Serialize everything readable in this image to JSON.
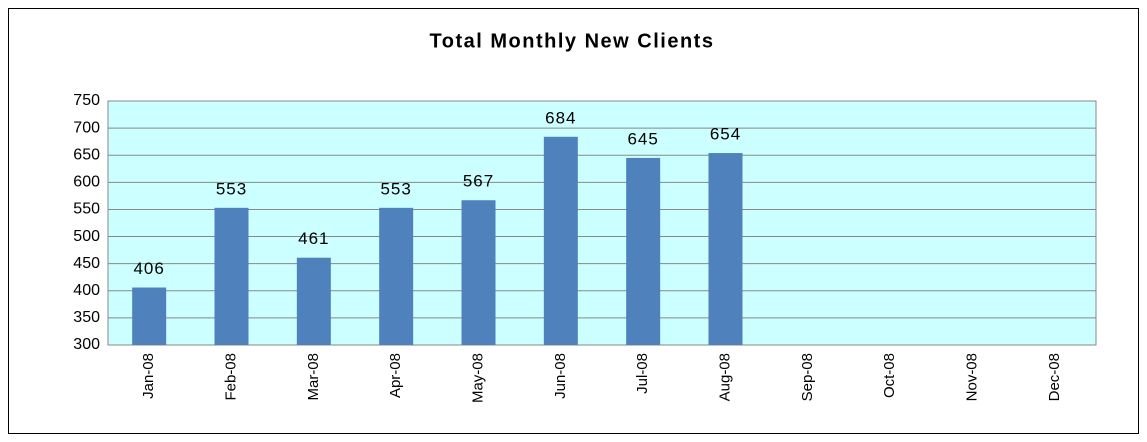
{
  "chart_data": {
    "type": "bar",
    "title": "Total Monthly New Clients",
    "categories": [
      "Jan-08",
      "Feb-08",
      "Mar-08",
      "Apr-08",
      "May-08",
      "Jun-08",
      "Jul-08",
      "Aug-08",
      "Sep-08",
      "Oct-08",
      "Nov-08",
      "Dec-08"
    ],
    "values": [
      406,
      553,
      461,
      553,
      567,
      684,
      645,
      654,
      null,
      null,
      null,
      null
    ],
    "color": "#4f81bd",
    "plot_background": "#ccffff",
    "ylim": [
      300,
      750
    ],
    "yticks": [
      300,
      350,
      400,
      450,
      500,
      550,
      600,
      650,
      700,
      750
    ],
    "grid": true
  }
}
